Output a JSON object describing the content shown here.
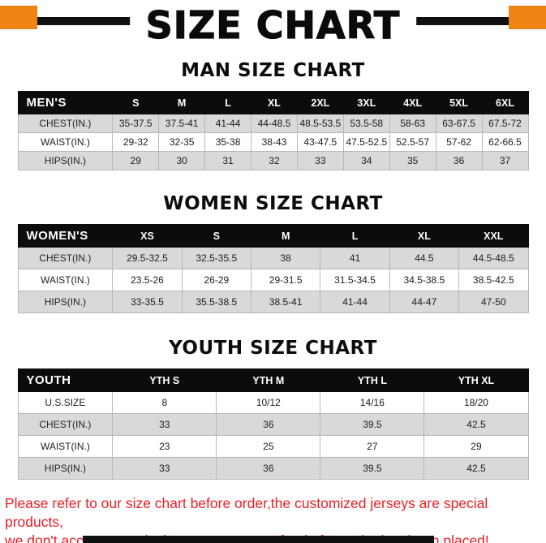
{
  "page": {
    "title": "SIZE CHART",
    "footer_line1": "Please refer to our size chart before order,the customized jerseys are special products,",
    "footer_line2": "we don't accept cancel, change, teturn or refund after order has been placed!",
    "accent_orange": "#ee8411",
    "footer_red": "#ed1c24",
    "header_black": "#0c0c0c",
    "stripe_gray": "#d9d9d9"
  },
  "tables": [
    {
      "section_title": "MAN SIZE CHART",
      "header": [
        "MEN'S",
        "S",
        "M",
        "L",
        "XL",
        "2XL",
        "3XL",
        "4XL",
        "5XL",
        "6XL"
      ],
      "rows": [
        [
          "CHEST(IN.)",
          "35-37.5",
          "37.5-41",
          "41-44",
          "44-48.5",
          "48.5-53.5",
          "53.5-58",
          "58-63",
          "63-67.5",
          "67.5-72"
        ],
        [
          "WAIST(IN.)",
          "29-32",
          "32-35",
          "35-38",
          "38-43",
          "43-47.5",
          "47.5-52.5",
          "52.5-57",
          "57-62",
          "62-66.5"
        ],
        [
          "HIPS(IN.)",
          "29",
          "30",
          "31",
          "32",
          "33",
          "34",
          "35",
          "36",
          "37"
        ]
      ]
    },
    {
      "section_title": "WOMEN SIZE CHART",
      "header": [
        "WOMEN'S",
        "XS",
        "S",
        "M",
        "L",
        "XL",
        "XXL"
      ],
      "rows": [
        [
          "CHEST(IN.)",
          "29.5-32.5",
          "32.5-35.5",
          "38",
          "41",
          "44.5",
          "44.5-48.5"
        ],
        [
          "WAIST(IN.)",
          "23.5-26",
          "26-29",
          "29-31.5",
          "31.5-34.5",
          "34.5-38.5",
          "38.5-42.5"
        ],
        [
          "HIPS(IN.)",
          "33-35.5",
          "35.5-38.5",
          "38.5-41",
          "41-44",
          "44-47",
          "47-50"
        ]
      ]
    },
    {
      "section_title": "YOUTH SIZE CHART",
      "header": [
        "YOUTH",
        "YTH S",
        "YTH M",
        "YTH L",
        "YTH XL"
      ],
      "rows": [
        [
          "U.S.SIZE",
          "8",
          "10/12",
          "14/16",
          "18/20"
        ],
        [
          "CHEST(IN.)",
          "33",
          "36",
          "39.5",
          "42.5"
        ],
        [
          "WAIST(IN.)",
          "23",
          "25",
          "27",
          "29"
        ],
        [
          "HIPS(IN.)",
          "33",
          "36",
          "39.5",
          "42.5"
        ]
      ]
    }
  ]
}
